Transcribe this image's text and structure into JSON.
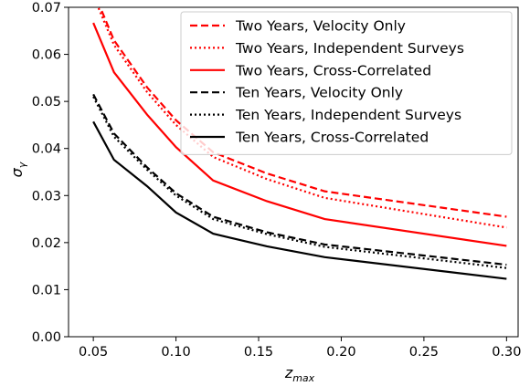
{
  "chart_data": {
    "type": "line",
    "xlabel": "z",
    "xlabel_sub": "max",
    "ylabel": "σ",
    "ylabel_sub": "γ",
    "xlim": [
      0.035,
      0.307
    ],
    "ylim": [
      0.0,
      0.07
    ],
    "xticks": [
      0.05,
      0.1,
      0.15,
      0.2,
      0.25,
      0.3
    ],
    "xtick_labels": [
      "0.05",
      "0.10",
      "0.15",
      "0.20",
      "0.25",
      "0.30"
    ],
    "yticks": [
      0.0,
      0.01,
      0.02,
      0.03,
      0.04,
      0.05,
      0.06,
      0.07
    ],
    "ytick_labels": [
      "0.00",
      "0.01",
      "0.02",
      "0.03",
      "0.04",
      "0.05",
      "0.06",
      "0.07"
    ],
    "grid": false,
    "legend_position": "top-right",
    "x": [
      0.05,
      0.0625,
      0.0825,
      0.1,
      0.1225,
      0.155,
      0.19,
      0.3
    ],
    "series": [
      {
        "name": "Two Years, Velocity Only",
        "color": "#ff0000",
        "dash": "dashed",
        "values": [
          0.0735,
          0.063,
          0.053,
          0.046,
          0.0392,
          0.0347,
          0.0309,
          0.0255
        ]
      },
      {
        "name": "Two Years, Independent Surveys",
        "color": "#ff0000",
        "dash": "dotted",
        "values": [
          0.0725,
          0.062,
          0.052,
          0.045,
          0.0382,
          0.0335,
          0.0295,
          0.0232
        ]
      },
      {
        "name": "Two Years, Cross-Correlated",
        "color": "#ff0000",
        "dash": "solid",
        "values": [
          0.0667,
          0.0562,
          0.0472,
          0.0403,
          0.0332,
          0.0288,
          0.025,
          0.0193
        ]
      },
      {
        "name": "Ten Years, Velocity Only",
        "color": "#000000",
        "dash": "dashed",
        "values": [
          0.0515,
          0.0432,
          0.036,
          0.0305,
          0.0255,
          0.0222,
          0.0196,
          0.0153
        ]
      },
      {
        "name": "Ten Years, Independent Surveys",
        "color": "#000000",
        "dash": "dotted",
        "values": [
          0.051,
          0.0425,
          0.0355,
          0.03,
          0.025,
          0.0218,
          0.0191,
          0.0146
        ]
      },
      {
        "name": "Ten Years, Cross-Correlated",
        "color": "#000000",
        "dash": "solid",
        "values": [
          0.0457,
          0.0376,
          0.032,
          0.0264,
          0.0219,
          0.0192,
          0.0169,
          0.0123
        ]
      }
    ]
  }
}
